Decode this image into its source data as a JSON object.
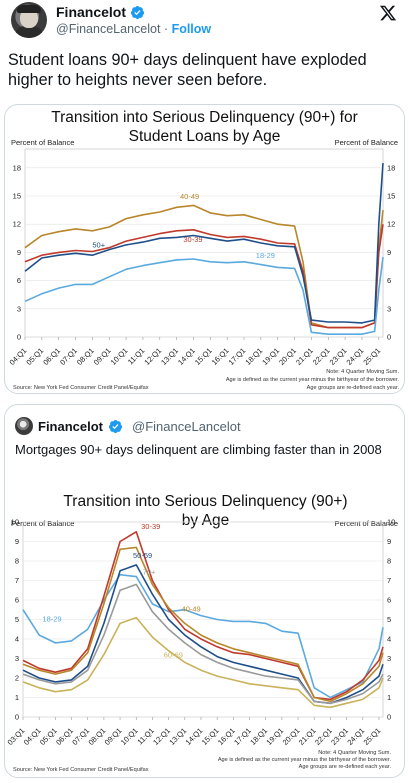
{
  "tweet": {
    "display_name": "Financelot",
    "handle": "@FinanceLancelot",
    "separator": "·",
    "follow": "Follow",
    "text": "Student loans 90+ days delinquent have exploded higher to heights never seen before."
  },
  "quote": {
    "display_name": "Financelot",
    "handle": "@FinanceLancelot",
    "text": "Mortgages 90+ days delinquent are climbing faster than in 2008"
  },
  "colors": {
    "verified": "#1d9bf0",
    "age_18_29": "#5aa9df",
    "age_30_39": "#c0392b",
    "age_40_49": "#b8862b",
    "age_50_59": "#1f4f8a",
    "age_60_69": "#c9b25a",
    "age_70_plus": "#9a9a9a",
    "age_50_plus": "#1f4f8a"
  },
  "icons": {
    "x_logo": "x-logo-icon",
    "verified": "verified-badge-icon"
  },
  "chart_data": [
    {
      "type": "line",
      "title_line1": "Transition into Serious Delinquency (90+) for",
      "title_line2": "Student Loans by Age",
      "ylabel_left": "Percent of Balance",
      "ylabel_right": "Percent of Balance",
      "ylim": [
        0,
        20
      ],
      "yticks": [
        0,
        3,
        6,
        9,
        12,
        15,
        18
      ],
      "x_ticks": [
        "04:Q1",
        "05:Q1",
        "06:Q1",
        "07:Q1",
        "08:Q1",
        "09:Q1",
        "10:Q1",
        "11:Q1",
        "12:Q1",
        "13:Q1",
        "14:Q1",
        "15:Q1",
        "16:Q1",
        "17:Q1",
        "18:Q1",
        "19:Q1",
        "20:Q1",
        "21:Q1",
        "22:Q1",
        "23:Q1",
        "24:Q1",
        "25:Q1"
      ],
      "x_start": 2004.0,
      "x_end": 2025.25,
      "note_1": "Note: 4 Quarter Moving Sum.",
      "note_2": "Age is defined as the current year minus the birthyear of the borrower.",
      "note_3": "Age groups are re-defined each year.",
      "source": "Source: New York Fed Consumer Credit Panel/Equifax",
      "series": [
        {
          "name": "40-49",
          "color_key": "age_40_49",
          "x": [
            2004,
            2005,
            2006,
            2007,
            2008,
            2009,
            2010,
            2011,
            2012,
            2013,
            2014,
            2015,
            2016,
            2017,
            2018,
            2019,
            2020,
            2020.5,
            2021,
            2022,
            2023,
            2024,
            2024.75,
            2025,
            2025.25
          ],
          "y": [
            9.5,
            10.8,
            11.2,
            11.5,
            11.3,
            11.7,
            12.6,
            13.0,
            13.3,
            13.8,
            14.0,
            13.2,
            12.9,
            13.0,
            12.5,
            12.0,
            11.8,
            8.0,
            1.5,
            1.0,
            1.0,
            1.0,
            1.5,
            9.5,
            13.5
          ]
        },
        {
          "name": "30-39",
          "color_key": "age_30_39",
          "x": [
            2004,
            2005,
            2006,
            2007,
            2008,
            2009,
            2010,
            2011,
            2012,
            2013,
            2014,
            2015,
            2016,
            2017,
            2018,
            2019,
            2020,
            2020.5,
            2021,
            2022,
            2023,
            2024,
            2024.75,
            2025,
            2025.25
          ],
          "y": [
            8.0,
            8.7,
            9.0,
            9.2,
            9.1,
            9.5,
            10.2,
            10.6,
            11.0,
            11.3,
            11.4,
            10.9,
            10.6,
            10.7,
            10.4,
            10.0,
            9.9,
            7.0,
            1.3,
            1.0,
            1.0,
            1.0,
            1.5,
            9.0,
            12.0
          ]
        },
        {
          "name": "50+",
          "color_key": "age_50_plus",
          "x": [
            2004,
            2005,
            2006,
            2007,
            2008,
            2009,
            2010,
            2011,
            2012,
            2013,
            2014,
            2015,
            2016,
            2017,
            2018,
            2019,
            2020,
            2020.5,
            2021,
            2022,
            2023,
            2024,
            2024.75,
            2025,
            2025.25
          ],
          "y": [
            7.0,
            8.4,
            8.7,
            8.9,
            8.7,
            9.3,
            9.8,
            10.1,
            10.5,
            10.6,
            10.8,
            10.5,
            10.2,
            10.4,
            10.0,
            9.7,
            9.6,
            6.5,
            1.8,
            1.6,
            1.6,
            1.5,
            1.8,
            12.0,
            18.5
          ]
        },
        {
          "name": "18-29",
          "color_key": "age_18_29",
          "x": [
            2004,
            2005,
            2006,
            2007,
            2008,
            2009,
            2010,
            2011,
            2012,
            2013,
            2014,
            2015,
            2016,
            2017,
            2018,
            2019,
            2020,
            2020.5,
            2021,
            2022,
            2023,
            2024,
            2024.75,
            2025,
            2025.25
          ],
          "y": [
            3.8,
            4.6,
            5.2,
            5.6,
            5.6,
            6.4,
            7.2,
            7.6,
            7.9,
            8.2,
            8.3,
            8.0,
            7.9,
            8.0,
            7.7,
            7.4,
            7.3,
            5.0,
            0.5,
            0.3,
            0.3,
            0.3,
            0.6,
            5.0,
            8.5
          ]
        }
      ]
    },
    {
      "type": "line",
      "title_line1": "Transition into Serious Delinquency (90+)",
      "title_line2": "by Age",
      "ylabel_left": "Percent of Balance",
      "ylabel_right": "Percent of Balance",
      "ylim": [
        0,
        10
      ],
      "yticks": [
        0,
        1,
        2,
        3,
        4,
        5,
        6,
        7,
        8,
        9,
        10
      ],
      "x_ticks": [
        "03:Q1",
        "04:Q1",
        "05:Q1",
        "06:Q1",
        "07:Q1",
        "08:Q1",
        "09:Q1",
        "10:Q1",
        "11:Q1",
        "12:Q1",
        "13:Q1",
        "14:Q1",
        "15:Q1",
        "16:Q1",
        "17:Q1",
        "18:Q1",
        "19:Q1",
        "20:Q1",
        "21:Q1",
        "22:Q1",
        "23:Q1",
        "24:Q1",
        "25:Q1"
      ],
      "x_start": 2003.0,
      "x_end": 2025.25,
      "note_1": "Note: 4 Quarter Moving Sum.",
      "note_2": "Age is defined as the current year minus the birthyear of the borrower.",
      "note_3": "Age groups are re-defined each year.",
      "source": "Source: New York Fed Consumer Credit Panel/Equifax",
      "series": [
        {
          "name": "18-29",
          "color_key": "age_18_29",
          "x": [
            2003,
            2004,
            2005,
            2006,
            2007,
            2008,
            2009,
            2010,
            2011,
            2012,
            2013,
            2014,
            2015,
            2016,
            2017,
            2018,
            2019,
            2020,
            2021,
            2022,
            2023,
            2024,
            2025,
            2025.25
          ],
          "y": [
            5.5,
            4.2,
            3.8,
            3.9,
            4.5,
            6.0,
            7.3,
            7.2,
            5.8,
            5.4,
            5.5,
            5.2,
            5.0,
            4.9,
            4.9,
            4.8,
            4.4,
            4.3,
            1.5,
            1.0,
            1.4,
            1.8,
            3.5,
            4.6
          ]
        },
        {
          "name": "30-39",
          "color_key": "age_30_39",
          "x": [
            2003,
            2004,
            2005,
            2006,
            2007,
            2008,
            2009,
            2010,
            2011,
            2012,
            2013,
            2014,
            2015,
            2016,
            2017,
            2018,
            2019,
            2020,
            2021,
            2022,
            2023,
            2024,
            2025,
            2025.25
          ],
          "y": [
            2.9,
            2.5,
            2.3,
            2.5,
            3.5,
            6.2,
            9.0,
            9.5,
            7.0,
            5.5,
            4.5,
            4.0,
            3.6,
            3.3,
            3.2,
            3.0,
            2.8,
            2.6,
            1.0,
            0.9,
            1.3,
            1.9,
            2.9,
            3.6
          ]
        },
        {
          "name": "40-49",
          "color_key": "age_40_49",
          "x": [
            2003,
            2004,
            2005,
            2006,
            2007,
            2008,
            2009,
            2010,
            2011,
            2012,
            2013,
            2014,
            2015,
            2016,
            2017,
            2018,
            2019,
            2020,
            2021,
            2022,
            2023,
            2024,
            2025,
            2025.25
          ],
          "y": [
            2.7,
            2.4,
            2.2,
            2.4,
            3.3,
            5.8,
            8.6,
            8.7,
            6.8,
            5.6,
            4.8,
            4.2,
            3.8,
            3.5,
            3.3,
            3.1,
            2.9,
            2.7,
            1.0,
            0.8,
            1.2,
            1.7,
            2.6,
            3.3
          ]
        },
        {
          "name": "50-59",
          "color_key": "age_50_59",
          "x": [
            2003,
            2004,
            2005,
            2006,
            2007,
            2008,
            2009,
            2010,
            2011,
            2012,
            2013,
            2014,
            2015,
            2016,
            2017,
            2018,
            2019,
            2020,
            2021,
            2022,
            2023,
            2024,
            2025,
            2025.25
          ],
          "y": [
            2.4,
            2.0,
            1.8,
            1.9,
            2.6,
            4.8,
            7.5,
            7.8,
            6.3,
            5.0,
            4.2,
            3.6,
            3.1,
            2.8,
            2.6,
            2.4,
            2.2,
            2.0,
            0.8,
            0.7,
            1.0,
            1.4,
            2.1,
            2.7
          ]
        },
        {
          "name": "70+",
          "color_key": "age_70_plus",
          "x": [
            2003,
            2004,
            2005,
            2006,
            2007,
            2008,
            2009,
            2010,
            2011,
            2012,
            2013,
            2014,
            2015,
            2016,
            2017,
            2018,
            2019,
            2020,
            2021,
            2022,
            2023,
            2024,
            2025,
            2025.25
          ],
          "y": [
            2.2,
            1.9,
            1.7,
            1.8,
            2.4,
            4.2,
            6.5,
            6.8,
            5.4,
            4.5,
            3.8,
            3.2,
            2.8,
            2.5,
            2.3,
            2.1,
            2.0,
            1.9,
            0.8,
            0.7,
            0.9,
            1.2,
            1.8,
            2.2
          ]
        },
        {
          "name": "60-69",
          "color_key": "age_60_69",
          "x": [
            2003,
            2004,
            2005,
            2006,
            2007,
            2008,
            2009,
            2010,
            2011,
            2012,
            2013,
            2014,
            2015,
            2016,
            2017,
            2018,
            2019,
            2020,
            2021,
            2022,
            2023,
            2024,
            2025,
            2025.25
          ],
          "y": [
            1.8,
            1.5,
            1.3,
            1.4,
            1.9,
            3.2,
            4.8,
            5.1,
            4.1,
            3.4,
            2.8,
            2.4,
            2.1,
            1.9,
            1.7,
            1.6,
            1.5,
            1.4,
            0.6,
            0.5,
            0.7,
            0.9,
            1.5,
            2.0
          ]
        }
      ]
    }
  ]
}
